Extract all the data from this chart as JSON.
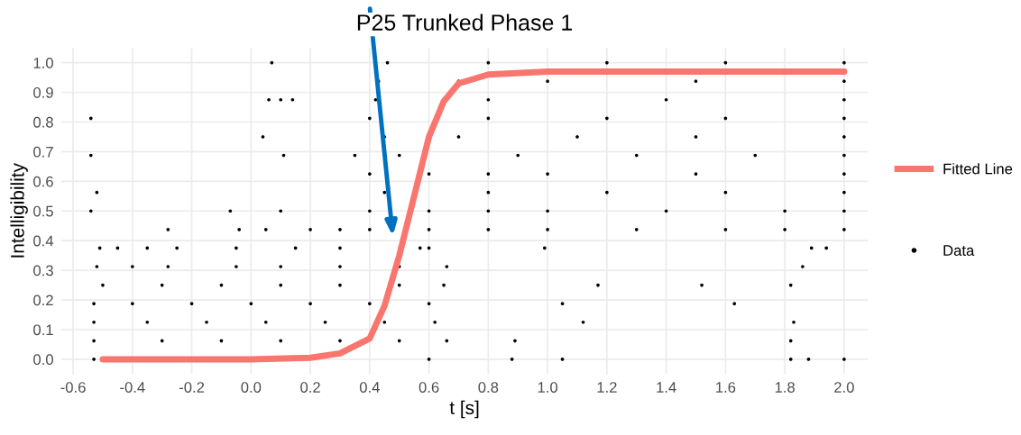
{
  "chart_data": {
    "type": "scatter",
    "title": "P25 Trunked Phase 1",
    "xlabel": "t [s]",
    "ylabel": "Intelligibility",
    "xlim": [
      -0.64,
      2.08
    ],
    "ylim": [
      -0.05,
      1.05
    ],
    "xticks": [
      -0.6,
      -0.4,
      -0.2,
      {
        "value": 0,
        "label": "0.0"
      },
      0.2,
      0.4,
      0.6,
      0.8,
      {
        "value": 1,
        "label": "1.0"
      },
      1.2,
      1.4,
      1.6,
      1.8,
      {
        "value": 2,
        "label": "2.0"
      }
    ],
    "yticks": [
      {
        "value": 0,
        "label": "0.0"
      },
      0.1,
      0.2,
      0.3,
      0.4,
      0.5,
      0.6,
      0.7,
      0.8,
      0.9,
      {
        "value": 1,
        "label": "1.0"
      }
    ],
    "grid": true,
    "legend": "right",
    "series": [
      {
        "name": "Fitted Line",
        "type": "line",
        "color": "#f8766d",
        "marker": "none",
        "x": [
          -0.5,
          0.0,
          0.2,
          0.3,
          0.4,
          0.45,
          0.5,
          0.55,
          0.6,
          0.65,
          0.7,
          0.8,
          1.0,
          2.0
        ],
        "values": [
          0.0,
          0.0,
          0.005,
          0.02,
          0.07,
          0.18,
          0.35,
          0.55,
          0.75,
          0.87,
          0.93,
          0.96,
          0.97,
          0.97
        ]
      },
      {
        "name": "Data",
        "color": "#000000",
        "marker": "circle",
        "x": [
          -0.53,
          0.6,
          0.88,
          1.05,
          1.82,
          1.88,
          2.0,
          -0.53,
          -0.3,
          -0.1,
          0.1,
          0.3,
          0.5,
          0.66,
          0.89,
          1.82,
          -0.53,
          -0.35,
          -0.15,
          0.05,
          0.25,
          0.45,
          0.62,
          1.12,
          1.83,
          -0.53,
          -0.4,
          -0.2,
          0,
          0.2,
          0.4,
          0.6,
          1.05,
          1.63,
          -0.5,
          -0.3,
          -0.1,
          0.1,
          0.3,
          0.5,
          0.65,
          1.17,
          1.52,
          1.82,
          -0.52,
          -0.4,
          -0.28,
          -0.05,
          0.1,
          0.3,
          0.5,
          0.66,
          1.86,
          -0.51,
          -0.45,
          -0.35,
          -0.25,
          -0.05,
          0.15,
          0.3,
          0.57,
          0.6,
          0.99,
          1.89,
          1.94,
          -0.28,
          -0.04,
          0.05,
          0.2,
          0.3,
          0.4,
          0.6,
          0.8,
          1.0,
          1.3,
          1.6,
          1.8,
          2.0,
          -0.54,
          -0.07,
          0.1,
          0.4,
          0.6,
          0.8,
          1.0,
          1.4,
          1.8,
          2.0,
          -0.52,
          0.45,
          0.8,
          1.2,
          1.6,
          2.0,
          0.4,
          0.6,
          0.8,
          1.0,
          1.5,
          2.0,
          -0.54,
          0.11,
          0.35,
          0.5,
          0.9,
          1.3,
          1.7,
          2.0,
          0.04,
          0.45,
          0.7,
          1.1,
          1.5,
          2.0,
          -0.54,
          0.4,
          0.8,
          1.2,
          1.6,
          2.0,
          0.06,
          0.1,
          0.14,
          0.42,
          0.8,
          1.4,
          2.0,
          0.43,
          0.7,
          1.0,
          1.5,
          2.0,
          0.07,
          0.46,
          0.8,
          1.2,
          1.6,
          2.0
        ],
        "values": [
          0,
          0,
          0,
          0,
          0,
          0,
          0,
          0.0625,
          0.0625,
          0.0625,
          0.0625,
          0.0625,
          0.0625,
          0.0625,
          0.0625,
          0.0625,
          0.125,
          0.125,
          0.125,
          0.125,
          0.125,
          0.125,
          0.125,
          0.125,
          0.125,
          0.1875,
          0.1875,
          0.1875,
          0.1875,
          0.1875,
          0.1875,
          0.1875,
          0.1875,
          0.1875,
          0.25,
          0.25,
          0.25,
          0.25,
          0.25,
          0.25,
          0.25,
          0.25,
          0.25,
          0.25,
          0.3125,
          0.3125,
          0.3125,
          0.3125,
          0.3125,
          0.3125,
          0.3125,
          0.3125,
          0.3125,
          0.375,
          0.375,
          0.375,
          0.375,
          0.375,
          0.375,
          0.375,
          0.375,
          0.375,
          0.375,
          0.375,
          0.375,
          0.4375,
          0.4375,
          0.4375,
          0.4375,
          0.4375,
          0.4375,
          0.4375,
          0.4375,
          0.4375,
          0.4375,
          0.4375,
          0.4375,
          0.4375,
          0.5,
          0.5,
          0.5,
          0.5,
          0.5,
          0.5,
          0.5,
          0.5,
          0.5,
          0.5,
          0.5625,
          0.5625,
          0.5625,
          0.5625,
          0.5625,
          0.5625,
          0.625,
          0.625,
          0.625,
          0.625,
          0.625,
          0.625,
          0.6875,
          0.6875,
          0.6875,
          0.6875,
          0.6875,
          0.6875,
          0.6875,
          0.6875,
          0.75,
          0.75,
          0.75,
          0.75,
          0.75,
          0.75,
          0.8125,
          0.8125,
          0.8125,
          0.8125,
          0.8125,
          0.8125,
          0.875,
          0.875,
          0.875,
          0.875,
          0.875,
          0.875,
          0.875,
          0.9375,
          0.9375,
          0.9375,
          0.9375,
          0.9375,
          1.0,
          1.0,
          1.0,
          1.0,
          1.0,
          1.0
        ]
      }
    ]
  }
}
